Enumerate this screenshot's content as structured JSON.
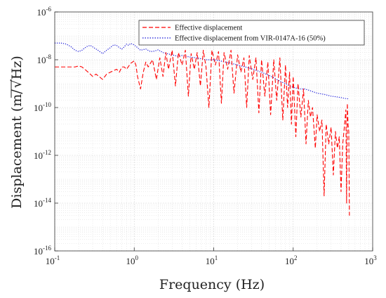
{
  "chart_data": {
    "type": "line",
    "title": "",
    "xlabel": "Frequency (Hz)",
    "ylabel_prefix": "Displacement (m/",
    "ylabel_radicand": "Hz",
    "ylabel_suffix": ")",
    "xscale": "log",
    "yscale": "log",
    "xlim": [
      0.1,
      1000
    ],
    "ylim": [
      1e-16,
      1e-06
    ],
    "grid": true,
    "minor_grid": true,
    "legend_position": "top-right",
    "x_ticks": [
      {
        "base": "10",
        "exp": "-1",
        "value": 0.1
      },
      {
        "base": "10",
        "exp": "0",
        "value": 1
      },
      {
        "base": "10",
        "exp": "1",
        "value": 10
      },
      {
        "base": "10",
        "exp": "2",
        "value": 100
      },
      {
        "base": "10",
        "exp": "3",
        "value": 1000
      }
    ],
    "y_ticks": [
      {
        "base": "10",
        "exp": "-16",
        "value": 1e-16
      },
      {
        "base": "10",
        "exp": "-14",
        "value": 1e-14
      },
      {
        "base": "10",
        "exp": "-12",
        "value": 1e-12
      },
      {
        "base": "10",
        "exp": "-10",
        "value": 1e-10
      },
      {
        "base": "10",
        "exp": "-8",
        "value": 1e-08
      },
      {
        "base": "10",
        "exp": "-6",
        "value": 1e-06
      }
    ],
    "series": [
      {
        "name": "Effective displacement",
        "color": "#ff0000",
        "dash": "dashed",
        "points": [
          [
            0.1,
            5e-09
          ],
          [
            0.12,
            5e-09
          ],
          [
            0.15,
            5e-09
          ],
          [
            0.18,
            5e-09
          ],
          [
            0.2,
            5.5e-09
          ],
          [
            0.22,
            5e-09
          ],
          [
            0.25,
            3.5e-09
          ],
          [
            0.28,
            2.5e-09
          ],
          [
            0.3,
            2e-09
          ],
          [
            0.33,
            2.5e-09
          ],
          [
            0.36,
            2e-09
          ],
          [
            0.4,
            1.5e-09
          ],
          [
            0.45,
            2.5e-09
          ],
          [
            0.5,
            3e-09
          ],
          [
            0.55,
            3.5e-09
          ],
          [
            0.6,
            4e-09
          ],
          [
            0.65,
            3e-09
          ],
          [
            0.7,
            5e-09
          ],
          [
            0.75,
            5e-09
          ],
          [
            0.8,
            4e-09
          ],
          [
            0.9,
            7e-09
          ],
          [
            1.0,
            9e-09
          ],
          [
            1.05,
            6e-09
          ],
          [
            1.1,
            2e-09
          ],
          [
            1.2,
            6e-10
          ],
          [
            1.3,
            3e-09
          ],
          [
            1.4,
            8e-09
          ],
          [
            1.5,
            5e-09
          ],
          [
            1.7,
            1e-08
          ],
          [
            1.9,
            1.5e-09
          ],
          [
            2.1,
            1.2e-08
          ],
          [
            2.3,
            2e-09
          ],
          [
            2.5,
            2e-08
          ],
          [
            2.7,
            4e-09
          ],
          [
            3.0,
            2.5e-08
          ],
          [
            3.3,
            8e-10
          ],
          [
            3.6,
            2e-08
          ],
          [
            4.0,
            6e-09
          ],
          [
            4.4,
            2.5e-08
          ],
          [
            4.8,
            3e-10
          ],
          [
            5.2,
            1.8e-08
          ],
          [
            5.7,
            4e-09
          ],
          [
            6.2,
            2e-08
          ],
          [
            6.8,
            8e-10
          ],
          [
            7.4,
            2.5e-08
          ],
          [
            8.0,
            5e-09
          ],
          [
            8.7,
            1e-10
          ],
          [
            9.5,
            2.5e-08
          ],
          [
            10.5,
            6e-09
          ],
          [
            11.5,
            2.2e-08
          ],
          [
            12.5,
            1.5e-10
          ],
          [
            13.5,
            2e-08
          ],
          [
            15.0,
            4e-09
          ],
          [
            16.5,
            2.5e-08
          ],
          [
            18.0,
            4e-10
          ],
          [
            20.0,
            1.6e-08
          ],
          [
            22.0,
            3e-09
          ],
          [
            24.0,
            1.2e-08
          ],
          [
            26.0,
            1e-10
          ],
          [
            28.0,
            1.5e-08
          ],
          [
            31.0,
            1.5e-09
          ],
          [
            34.0,
            1.2e-08
          ],
          [
            37.0,
            6e-11
          ],
          [
            40.0,
            1e-08
          ],
          [
            44.0,
            3e-10
          ],
          [
            48.0,
            8e-09
          ],
          [
            52.0,
            5e-11
          ],
          [
            57.0,
            1e-08
          ],
          [
            62.0,
            2e-10
          ],
          [
            68.0,
            1.2e-08
          ],
          [
            74.0,
            3e-11
          ],
          [
            80.0,
            6e-09
          ],
          [
            85.0,
            1e-10
          ],
          [
            90.0,
            3e-09
          ],
          [
            95.0,
            2e-11
          ],
          [
            100.0,
            2e-09
          ],
          [
            108.0,
            6e-12
          ],
          [
            115.0,
            1e-09
          ],
          [
            125.0,
            4e-11
          ],
          [
            135.0,
            6e-10
          ],
          [
            145.0,
            3e-12
          ],
          [
            155.0,
            2e-10
          ],
          [
            165.0,
            4e-11
          ],
          [
            175.0,
            1e-10
          ],
          [
            190.0,
            2e-12
          ],
          [
            200.0,
            5e-11
          ],
          [
            215.0,
            1e-11
          ],
          [
            230.0,
            3e-11
          ],
          [
            245.0,
            2e-14
          ],
          [
            260.0,
            2e-11
          ],
          [
            280.0,
            3e-12
          ],
          [
            300.0,
            1.5e-11
          ],
          [
            320.0,
            1.5e-13
          ],
          [
            340.0,
            1e-11
          ],
          [
            360.0,
            2e-12
          ],
          [
            380.0,
            6e-12
          ],
          [
            400.0,
            3e-14
          ],
          [
            420.0,
            3e-12
          ],
          [
            440.0,
            1.5e-11
          ],
          [
            460.0,
            8e-11
          ],
          [
            470.0,
            1e-14
          ],
          [
            480.0,
            1.5e-10
          ],
          [
            490.0,
            2e-11
          ],
          [
            500.0,
            1e-11
          ],
          [
            510.0,
            3e-15
          ]
        ]
      },
      {
        "name": "Effective displacement from VIR-0147A-16 (50%)",
        "color": "#1515d8",
        "dash": "dotted",
        "points": [
          [
            0.1,
            5e-08
          ],
          [
            0.12,
            5e-08
          ],
          [
            0.14,
            4.5e-08
          ],
          [
            0.16,
            3.5e-08
          ],
          [
            0.18,
            2.5e-08
          ],
          [
            0.2,
            2.2e-08
          ],
          [
            0.22,
            2.5e-08
          ],
          [
            0.25,
            3.5e-08
          ],
          [
            0.28,
            4e-08
          ],
          [
            0.31,
            3.2e-08
          ],
          [
            0.35,
            2.5e-08
          ],
          [
            0.4,
            1.8e-08
          ],
          [
            0.45,
            2.5e-08
          ],
          [
            0.5,
            3.2e-08
          ],
          [
            0.55,
            4.2e-08
          ],
          [
            0.6,
            4e-08
          ],
          [
            0.65,
            3.2e-08
          ],
          [
            0.7,
            2.8e-08
          ],
          [
            0.75,
            3.5e-08
          ],
          [
            0.8,
            4.5e-08
          ],
          [
            0.85,
            4e-08
          ],
          [
            0.9,
            4.8e-08
          ],
          [
            1.0,
            4.2e-08
          ],
          [
            1.1,
            3.2e-08
          ],
          [
            1.2,
            2.5e-08
          ],
          [
            1.4,
            2.8e-08
          ],
          [
            1.6,
            2.2e-08
          ],
          [
            1.8,
            2.3e-08
          ],
          [
            2.0,
            2.6e-08
          ],
          [
            2.3,
            2e-08
          ],
          [
            2.6,
            1.8e-08
          ],
          [
            3.0,
            1.6e-08
          ],
          [
            3.5,
            1.4e-08
          ],
          [
            4.0,
            1.5e-08
          ],
          [
            5.0,
            1.3e-08
          ],
          [
            6.0,
            1.2e-08
          ],
          [
            7.0,
            1.1e-08
          ],
          [
            8.0,
            1e-08
          ],
          [
            10.0,
            1e-08
          ],
          [
            12.0,
            9e-09
          ],
          [
            14.0,
            8e-09
          ],
          [
            17.0,
            7e-09
          ],
          [
            20.0,
            6e-09
          ],
          [
            25.0,
            5e-09
          ],
          [
            30.0,
            4.2e-09
          ],
          [
            35.0,
            3.5e-09
          ],
          [
            40.0,
            3e-09
          ],
          [
            50.0,
            2.2e-09
          ],
          [
            60.0,
            1.6e-09
          ],
          [
            70.0,
            1.2e-09
          ],
          [
            80.0,
            1e-09
          ],
          [
            90.0,
            8e-10
          ],
          [
            100.0,
            7e-10
          ],
          [
            120.0,
            6e-10
          ],
          [
            140.0,
            6e-10
          ],
          [
            160.0,
            5.2e-10
          ],
          [
            180.0,
            4.5e-10
          ],
          [
            200.0,
            4e-10
          ],
          [
            250.0,
            3.5e-10
          ],
          [
            300.0,
            3e-10
          ],
          [
            350.0,
            2.8e-10
          ],
          [
            400.0,
            2.6e-10
          ],
          [
            450.0,
            2.4e-10
          ],
          [
            500.0,
            2.3e-10
          ]
        ]
      }
    ]
  }
}
